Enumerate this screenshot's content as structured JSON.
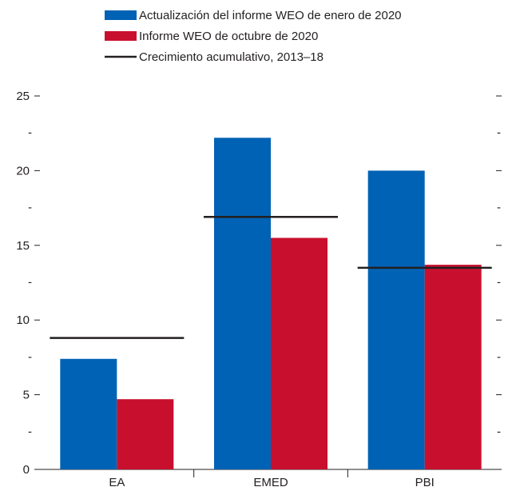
{
  "chart_data": {
    "type": "bar",
    "categories": [
      "EA",
      "EMED",
      "PBI"
    ],
    "series": [
      {
        "name": "Actualización del informe WEO de enero de 2020",
        "color": "#0062b4",
        "values": [
          7.4,
          22.2,
          20.0
        ]
      },
      {
        "name": "Informe WEO de octubre de 2020",
        "color": "#c8102e",
        "values": [
          4.7,
          15.5,
          13.7
        ]
      }
    ],
    "reference_line": {
      "name": "Crecimiento acumulativo, 2013–18",
      "color": "#231f20",
      "values": [
        8.8,
        16.9,
        13.5
      ]
    },
    "ylim": [
      0,
      25
    ],
    "yticks": [
      "0",
      "5",
      "10",
      "15",
      "20",
      "25"
    ],
    "minor_tick_mark": "-",
    "legend_position": "top-center",
    "grid": false
  }
}
